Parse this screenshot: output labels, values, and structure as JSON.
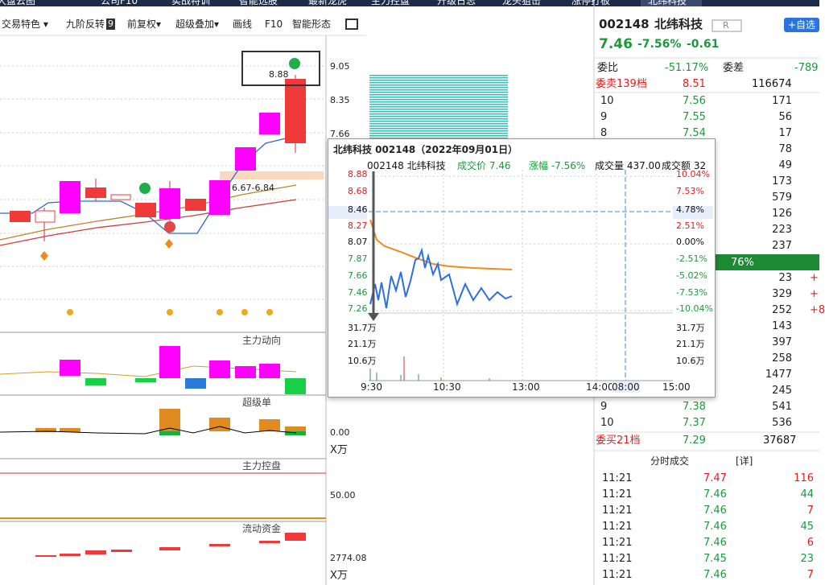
{
  "top_tabs": [
    "大盘云图",
    "公司F10",
    "实战特训",
    "智能选股",
    "最新龙虎",
    "主力控盘",
    "升级日志",
    "龙头狙击",
    "涨停打板",
    "北纬科技"
  ],
  "toolbar": {
    "items": [
      "交易特色 ▾",
      "九阶反转",
      "前复权▾",
      "超级叠加▾",
      "画线",
      "F10",
      "智能形态"
    ],
    "badge": "9"
  },
  "kline": {
    "price_labels": [
      "9.05",
      "8.35",
      "7.66"
    ],
    "high_label": "8.88",
    "range_label": "6.67-6.84"
  },
  "panels": [
    {
      "title": "主力动向"
    },
    {
      "title": "超级单",
      "axis": [
        "0.00",
        "X万"
      ]
    },
    {
      "title": "主力控盘",
      "axis": [
        "50.00"
      ]
    },
    {
      "title": "流动资金",
      "axis": [
        "2774.08",
        "X万"
      ]
    }
  ],
  "popup": {
    "title": "北纬科技 002148（2022年09月01日）",
    "header": [
      "002148 北纬科技",
      "成交价 7.46",
      "涨幅 -7.56%",
      "成交量 437.00",
      "成交额 32"
    ],
    "left_labels": [
      "8.88",
      "8.68",
      "8.46",
      "8.27",
      "8.07",
      "7.87",
      "7.66",
      "7.46",
      "7.26",
      "31.7万",
      "21.1万",
      "10.6万"
    ],
    "right_labels": [
      "10.04%",
      "7.53%",
      "4.78%",
      "2.51%",
      "0.00%",
      "-2.51%",
      "-5.02%",
      "-7.53%",
      "-10.04%",
      "31.7万",
      "21.1万",
      "10.6万"
    ],
    "time_labels": [
      "9:30",
      "10:30",
      "13:00",
      "14:00",
      "08:00",
      "15:00"
    ]
  },
  "quote": {
    "code": "002148",
    "name": "北纬科技",
    "tag": "R",
    "add": "+自选",
    "price": "7.46",
    "pct": "-7.56%",
    "chg": "-0.61",
    "ratio_label": "委比",
    "ratio": "-51.17%",
    "diff_label": "委差",
    "diff": "-789",
    "sell_total": [
      "委卖139档",
      "8.51",
      "116674"
    ],
    "sell": [
      {
        "level": "10",
        "price": "7.56",
        "volume": "171"
      },
      {
        "level": "9",
        "price": "7.55",
        "volume": "56"
      },
      {
        "level": "8",
        "price": "7.54",
        "volume": "17"
      },
      {
        "volume": "78"
      },
      {
        "volume": "49"
      },
      {
        "volume": "173"
      },
      {
        "volume": "579"
      },
      {
        "volume": "126"
      },
      {
        "volume": "223"
      },
      {
        "volume": "237"
      }
    ],
    "strength": "76%",
    "buy": [
      {
        "volume": "23",
        "extra": "+"
      },
      {
        "volume": "329",
        "extra": "+"
      },
      {
        "volume": "252",
        "extra": "+8"
      },
      {
        "volume": "143"
      },
      {
        "volume": "397"
      },
      {
        "volume": "258"
      },
      {
        "volume": "1477"
      },
      {
        "volume": "245"
      },
      {
        "level": "9",
        "price": "7.38",
        "volume": "541"
      },
      {
        "level": "10",
        "price": "7.37",
        "volume": "536"
      }
    ],
    "buy_total": [
      "委买21档",
      "7.29",
      "37687"
    ]
  },
  "trades": {
    "title": "分时成交",
    "detail": "[详]",
    "rows": [
      [
        "11:21",
        "7.47",
        "116"
      ],
      [
        "11:21",
        "7.46",
        "44"
      ],
      [
        "11:21",
        "7.46",
        "7"
      ],
      [
        "11:21",
        "7.46",
        "45"
      ],
      [
        "11:21",
        "7.46",
        "6"
      ],
      [
        "11:21",
        "7.45",
        "23"
      ],
      [
        "11:21",
        "7.46",
        "7"
      ]
    ]
  }
}
